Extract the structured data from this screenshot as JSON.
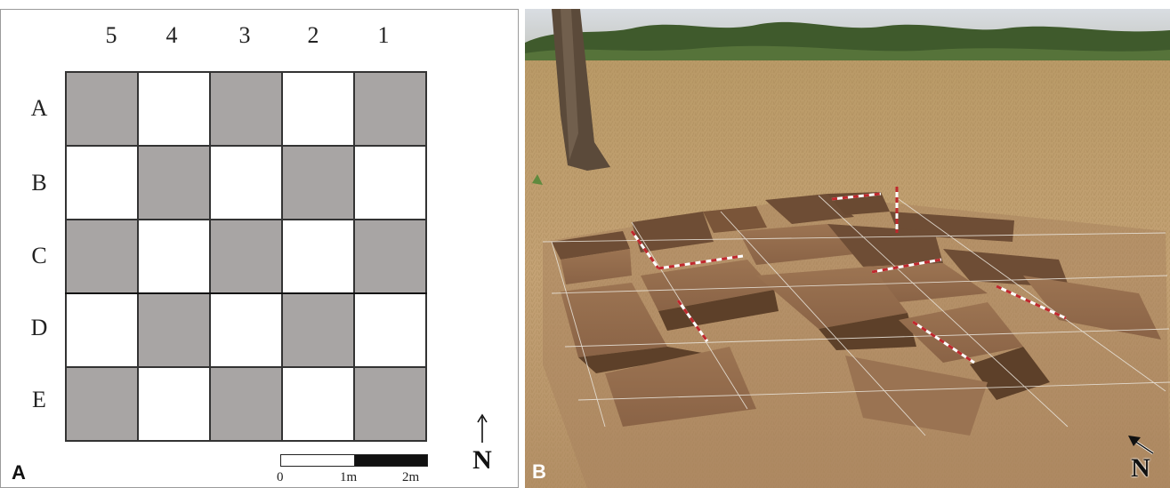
{
  "panel_a": {
    "letter": "A",
    "column_labels": [
      "5",
      "4",
      "3",
      "2",
      "1"
    ],
    "row_labels": [
      "A",
      "B",
      "C",
      "D",
      "E"
    ],
    "cell_colors": {
      "gray": "#a8a5a4",
      "white": "#ffffff"
    },
    "grid_pattern": [
      [
        "gray",
        "white",
        "gray",
        "white",
        "gray"
      ],
      [
        "white",
        "gray",
        "white",
        "gray",
        "white"
      ],
      [
        "gray",
        "white",
        "gray",
        "white",
        "gray"
      ],
      [
        "white",
        "gray",
        "white",
        "gray",
        "white"
      ],
      [
        "gray",
        "white",
        "gray",
        "white",
        "gray"
      ]
    ],
    "scale_labels": [
      "0",
      "1m",
      "2m"
    ],
    "north_label": "N"
  },
  "panel_b": {
    "letter": "B",
    "north_label": "N"
  }
}
